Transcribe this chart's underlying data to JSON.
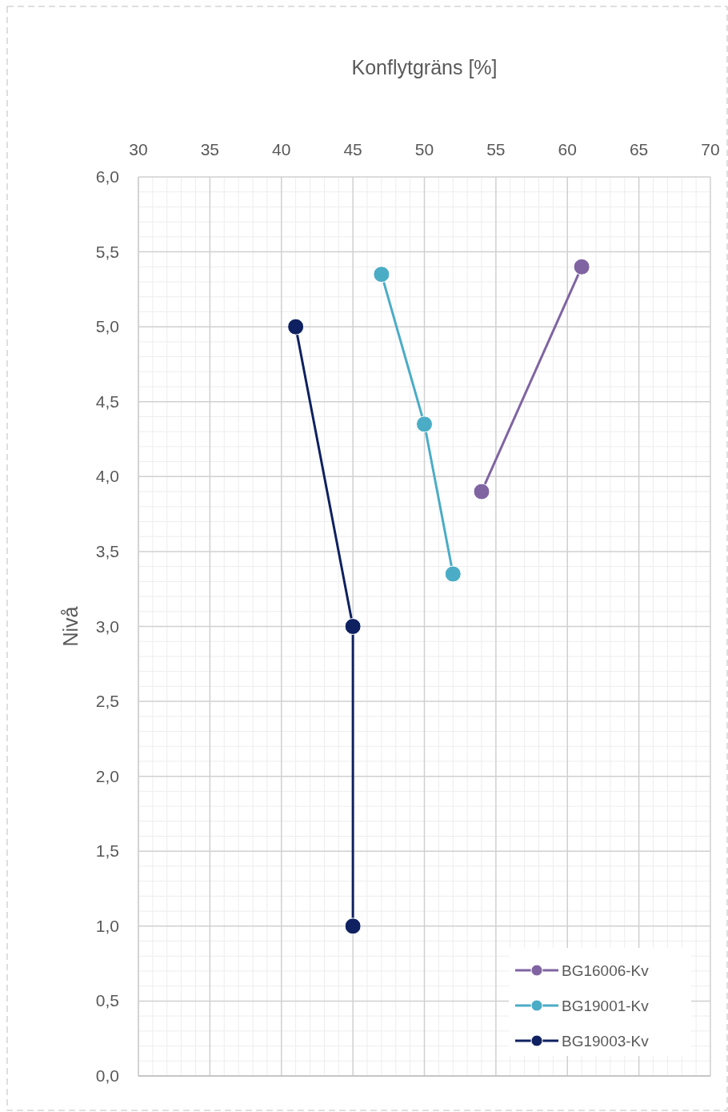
{
  "chart_data": {
    "type": "line",
    "xlabel": "Konflytgräns [%]",
    "ylabel": "Nivå",
    "xlim": [
      30,
      70
    ],
    "xticks": [
      30,
      35,
      40,
      45,
      50,
      55,
      60,
      65,
      70
    ],
    "ylim": [
      0,
      6
    ],
    "yticks": [
      {
        "value": 0,
        "label": "0,0"
      },
      {
        "value": 0.5,
        "label": "0,5"
      },
      {
        "value": 1,
        "label": "1,0"
      },
      {
        "value": 1.5,
        "label": "1,5"
      },
      {
        "value": 2,
        "label": "2,0"
      },
      {
        "value": 2.5,
        "label": "2,5"
      },
      {
        "value": 3,
        "label": "3,0"
      },
      {
        "value": 3.5,
        "label": "3,5"
      },
      {
        "value": 4,
        "label": "4,0"
      },
      {
        "value": 4.5,
        "label": "4,5"
      },
      {
        "value": 5,
        "label": "5,0"
      },
      {
        "value": 5.5,
        "label": "5,5"
      },
      {
        "value": 6,
        "label": "6,0"
      }
    ],
    "grid": true,
    "legend": "bottom right",
    "marker": "circle",
    "line_style": "solid",
    "series": [
      {
        "name": "BG16006-Kv",
        "color": "#8064a2",
        "x": [
          54,
          61
        ],
        "values": [
          3.9,
          5.4
        ]
      },
      {
        "name": "BG19001-Kv",
        "color": "#4bacc6",
        "x": [
          47,
          50,
          52
        ],
        "values": [
          5.35,
          4.35,
          3.35
        ]
      },
      {
        "name": "BG19003-Kv",
        "color": "#0f2160",
        "x": [
          41,
          45,
          45
        ],
        "values": [
          5.0,
          3.0,
          1.0
        ]
      }
    ]
  }
}
